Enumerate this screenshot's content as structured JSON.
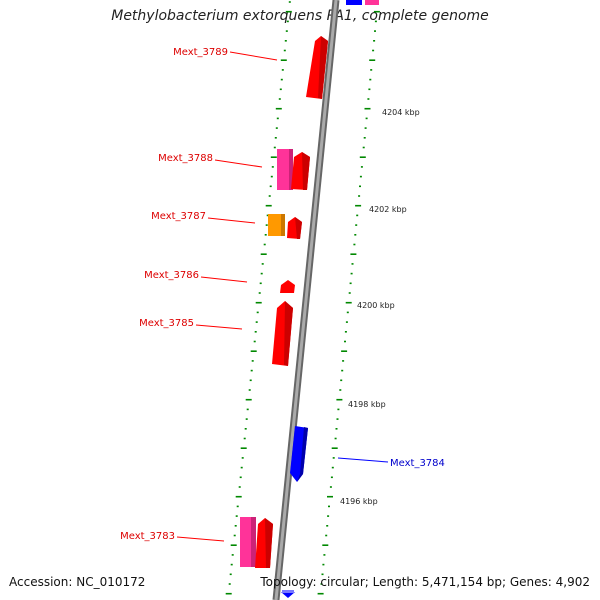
{
  "title": "Methylobacterium extorquens PA1, complete genome",
  "accession_text": "Accession: NC_010172",
  "summary_text": "Topology: circular; Length: 5,471,154 bp; Genes: 4,902",
  "colors": {
    "red": "#ff0000",
    "pink": "#ff3399",
    "orange": "#ff9900",
    "blue": "#0000ff",
    "backbone": "#888888",
    "tick": "#008800"
  },
  "genes": [
    {
      "label": "Mext_3789",
      "color": "red"
    },
    {
      "label": "Mext_3788",
      "color": "red"
    },
    {
      "label": "Mext_3787",
      "color": "red"
    },
    {
      "label": "Mext_3786",
      "color": "red"
    },
    {
      "label": "Mext_3785",
      "color": "red"
    },
    {
      "label": "Mext_3784",
      "color": "blue"
    },
    {
      "label": "Mext_3783",
      "color": "red"
    }
  ],
  "kbp_labels": [
    "4204 kbp",
    "4202 kbp",
    "4200 kbp",
    "4198 kbp",
    "4196 kbp"
  ]
}
